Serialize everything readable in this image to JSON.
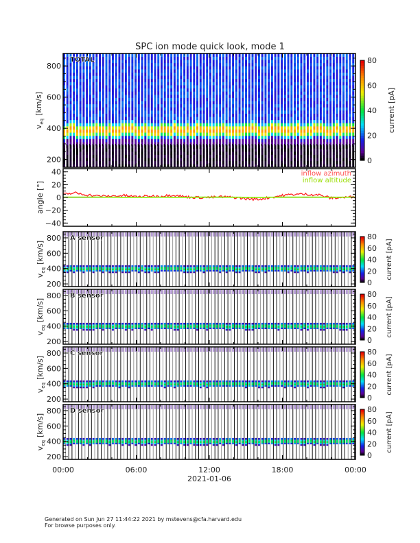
{
  "title": "SPC ion mode quick look, mode 1",
  "x_axis": {
    "ticks": [
      "00:00",
      "06:00",
      "12:00",
      "18:00",
      "00:00"
    ],
    "date": "2021-01-06"
  },
  "footer": {
    "line1": "Generated on Sun Jun 27 11:44:22 2021 by mstevens@cfa.harvard.edu",
    "line2": "For browse purposes only."
  },
  "chart_data": [
    {
      "type": "heatmap",
      "label": "TOTAL",
      "ylabel": {
        "main": "v",
        "sub": "eq",
        "unit": "[km/s]"
      },
      "yticks": [
        "200",
        "400",
        "600",
        "800"
      ],
      "ylim": [
        150,
        880
      ],
      "xlim_hours": [
        0,
        24
      ],
      "peak_speed_kms": 390,
      "colorbar": {
        "label": "current [pA]",
        "ticks": [
          "0",
          "20",
          "40",
          "60",
          "80"
        ],
        "range": [
          0,
          80
        ]
      }
    },
    {
      "type": "line",
      "ylabel": "angle [°]",
      "yticks": [
        "−40",
        "−20",
        "0",
        "20",
        "40"
      ],
      "ylim": [
        -45,
        45
      ],
      "series": [
        {
          "name": "inflow azimuth",
          "color": "#ff2020",
          "x": [
            0,
            1,
            2,
            3,
            4,
            5,
            6,
            7,
            8,
            9,
            10,
            11,
            12,
            13,
            14,
            15,
            16,
            17,
            18,
            19,
            20,
            21,
            22,
            23,
            24
          ],
          "y": [
            5,
            7,
            4,
            2,
            2,
            3,
            1,
            2,
            2,
            4,
            1,
            0,
            0,
            1,
            0,
            -2,
            -3,
            0,
            3,
            5,
            5,
            4,
            -1,
            0,
            1
          ]
        },
        {
          "name": "inflow altitude",
          "color": "#88ee00",
          "x": [
            0,
            2,
            4,
            6,
            8,
            10,
            12,
            14,
            16,
            18,
            20,
            22,
            24
          ],
          "y": [
            0.5,
            0.5,
            0.3,
            0.2,
            0.3,
            0.2,
            0.5,
            0.3,
            0.2,
            0.4,
            0.5,
            0.3,
            0.4
          ]
        }
      ]
    },
    {
      "type": "heatmap",
      "label": "A sensor",
      "ylabel": {
        "main": "v",
        "sub": "eq",
        "unit": "[km/s]"
      },
      "yticks": [
        "200",
        "400",
        "600",
        "800"
      ],
      "ylim": [
        165,
        880
      ],
      "peak_speed_kms": 400,
      "colorbar": {
        "label": "current [pA]",
        "ticks": [
          "0",
          "20",
          "40",
          "60",
          "80"
        ],
        "range": [
          0,
          80
        ]
      }
    },
    {
      "type": "heatmap",
      "label": "B sensor",
      "ylabel": {
        "main": "v",
        "sub": "eq",
        "unit": "[km/s]"
      },
      "yticks": [
        "200",
        "400",
        "600",
        "800"
      ],
      "ylim": [
        165,
        880
      ],
      "peak_speed_kms": 400,
      "colorbar": {
        "label": "current [pA]",
        "ticks": [
          "0",
          "20",
          "40",
          "60",
          "80"
        ],
        "range": [
          0,
          80
        ]
      }
    },
    {
      "type": "heatmap",
      "label": "C sensor",
      "ylabel": {
        "main": "v",
        "sub": "eq",
        "unit": "[km/s]"
      },
      "yticks": [
        "200",
        "400",
        "600",
        "800"
      ],
      "ylim": [
        165,
        880
      ],
      "peak_speed_kms": 400,
      "colorbar": {
        "label": "current [pA]",
        "ticks": [
          "0",
          "20",
          "40",
          "60",
          "80"
        ],
        "range": [
          0,
          80
        ]
      }
    },
    {
      "type": "heatmap",
      "label": "D sensor",
      "ylabel": {
        "main": "v",
        "sub": "eq",
        "unit": "[km/s]"
      },
      "yticks": [
        "200",
        "400",
        "600",
        "800"
      ],
      "ylim": [
        165,
        880
      ],
      "peak_speed_kms": 400,
      "colorbar": {
        "label": "current [pA]",
        "ticks": [
          "0",
          "20",
          "40",
          "60",
          "80"
        ],
        "range": [
          0,
          80
        ]
      }
    }
  ]
}
